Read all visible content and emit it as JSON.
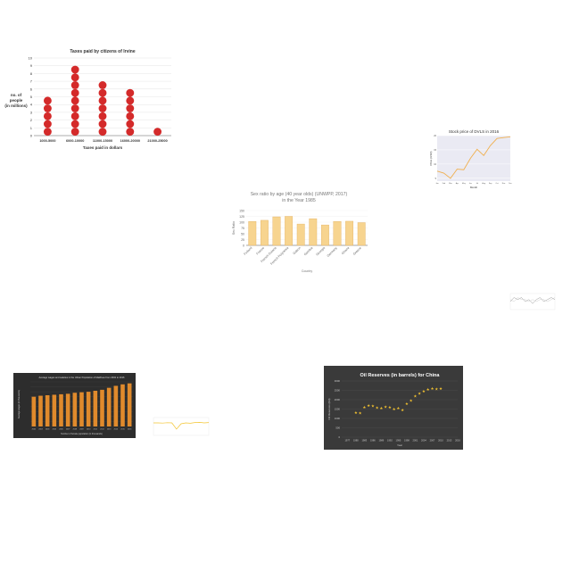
{
  "charts": {
    "dot": {
      "type": "scatter",
      "title": "Taxes paid by citizens of Irvine",
      "xlabel": "Taxes paid in dollars",
      "ylabel": [
        "no. of",
        "people",
        "(in millions)"
      ],
      "ylim": [
        0,
        10
      ],
      "yticks": [
        0,
        1,
        2,
        3,
        4,
        5,
        6,
        7,
        8,
        9,
        10
      ],
      "categories": [
        "1000-5000",
        "6000-10000",
        "11000-15000",
        "16000-20000",
        "21000-25000"
      ],
      "values": [
        5,
        9,
        7,
        6,
        1
      ],
      "dot_color": "#d42a2a"
    },
    "stock": {
      "type": "line",
      "title": "Stock price of DVLS in 2016",
      "xlabel": "Month",
      "ylabel": "Price (USD)",
      "ylim": [
        4,
        20
      ],
      "categories": [
        "Jan",
        "Feb",
        "Mar",
        "Apr",
        "May",
        "Jun",
        "Jul",
        "Aug",
        "Sep",
        "Oct",
        "Nov",
        "Dec"
      ],
      "values": [
        7.5,
        6.8,
        5.0,
        8.2,
        8.0,
        12.0,
        15.2,
        13.0,
        16.5,
        19.0,
        19.3,
        19.6
      ],
      "line_color": "#f0b050",
      "bg_color": "#eaeaf3"
    },
    "sex": {
      "type": "bar",
      "title": [
        "Sex ratio by age (40 year olds) (UNWPP, 2017)",
        "in the Year 1985"
      ],
      "xlabel": "Country",
      "ylabel": "Sex Ratio",
      "ylim": [
        0,
        150
      ],
      "yticks": [
        0,
        25,
        50,
        75,
        100,
        125,
        150
      ],
      "categories": [
        "Finland",
        "France",
        "French Guiana",
        "French Polynesia",
        "Gabon",
        "Gambia",
        "Georgia",
        "Germany",
        "Ghana",
        "Greece"
      ],
      "values": [
        103,
        108,
        123,
        125,
        92,
        115,
        88,
        103,
        104,
        98
      ],
      "bar_color": "#f7d48f",
      "edge_color": "#e3b060"
    },
    "tiny": {
      "type": "line",
      "series": [
        {
          "values": [
            4,
            6,
            5,
            6,
            4,
            5,
            3,
            5,
            6,
            4,
            5,
            6,
            5
          ],
          "color": "#999999"
        },
        {
          "values": [
            5,
            4,
            6,
            5,
            5,
            4,
            5,
            4,
            5,
            5,
            4,
            5,
            6
          ],
          "color": "#cfcfcf"
        }
      ],
      "ylim": [
        0,
        8
      ]
    },
    "orange": {
      "type": "bar",
      "title": "Average wages and salaries in the Urban Population of Maldives from 2002 to 2016",
      "xlabel": "Number of female population (in thousands)",
      "ylabel": "Average wages (in thousands)",
      "ylim": [
        0,
        9
      ],
      "categories": [
        "2002",
        "2003",
        "2004",
        "2005",
        "2006",
        "2007",
        "2008",
        "2009",
        "2010",
        "2011",
        "2012",
        "2013",
        "2014",
        "2015",
        "2016"
      ],
      "values": [
        6.0,
        6.2,
        6.3,
        6.4,
        6.5,
        6.6,
        6.8,
        6.9,
        7.0,
        7.2,
        7.4,
        7.8,
        8.2,
        8.5,
        8.7
      ],
      "bar_color": "#e08a2c",
      "bg_color": "#2d2d2d"
    },
    "small": {
      "type": "line",
      "series": [
        {
          "values": [
            7.0,
            7.0,
            6.9,
            7.1,
            7.0,
            3.5,
            6.5,
            7.0,
            6.8,
            7.2,
            7.3,
            7.0,
            7.2
          ],
          "color": "#f3c531"
        }
      ],
      "ylim": [
        0,
        10
      ]
    },
    "oil": {
      "type": "scatter",
      "title": "Oil Reserves (in barrels) for China",
      "xlabel": "Year",
      "ylabel": "Oil Reserves (bbl)",
      "ylim": [
        0,
        3000
      ],
      "yticks": [
        0,
        500,
        1000,
        1500,
        2000,
        2500,
        3000
      ],
      "xlim": [
        1975,
        2016
      ],
      "xticks": [
        1977,
        1980,
        1983,
        1986,
        1989,
        1992,
        1995,
        1998,
        2001,
        2004,
        2007,
        2010,
        2013,
        2016
      ],
      "x": [
        1980,
        1981.5,
        1983,
        1984.5,
        1986,
        1987.5,
        1989,
        1990.5,
        1992,
        1993.5,
        1995,
        1996.5,
        1998,
        1999.5,
        2001,
        2002.5,
        2004,
        2005.5,
        2007,
        2008.5,
        2010
      ],
      "values": [
        1310,
        1300,
        1600,
        1700,
        1680,
        1580,
        1550,
        1620,
        1600,
        1500,
        1560,
        1450,
        1800,
        1950,
        2200,
        2350,
        2450,
        2550,
        2600,
        2580,
        2600
      ],
      "point_color": "#f0c030",
      "bg_color": "#3a3a3a"
    }
  }
}
